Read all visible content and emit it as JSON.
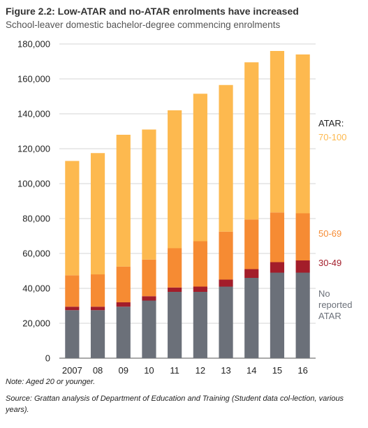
{
  "title": "Figure 2.2: Low-ATAR and no-ATAR enrolments have increased",
  "subtitle": "School-leaver domestic bachelor-degree commencing enrolments",
  "note": "Note: Aged 20 or younger.",
  "source": "Source: Grattan analysis of Department of Education and Training (Student data col-lection, various years).",
  "legend": {
    "header": "ATAR:",
    "items": [
      {
        "key": "atar_70_100",
        "label": "70-100",
        "color": "#FDB94F"
      },
      {
        "key": "atar_50_69",
        "label": "50-69",
        "color": "#F68B33"
      },
      {
        "key": "atar_30_49",
        "label": "30-49",
        "color": "#A31D2A"
      },
      {
        "key": "no_atar",
        "lines": [
          "No",
          "reported",
          "ATAR"
        ],
        "color": "#6B7079"
      }
    ]
  },
  "chart_data": {
    "type": "bar",
    "stacked": true,
    "categories": [
      "2007",
      "08",
      "09",
      "10",
      "11",
      "12",
      "13",
      "14",
      "15",
      "16"
    ],
    "ylim": [
      0,
      180000
    ],
    "yticks": [
      0,
      20000,
      40000,
      60000,
      80000,
      100000,
      120000,
      140000,
      160000,
      180000
    ],
    "ytick_labels": [
      "0",
      "20,000",
      "40,000",
      "60,000",
      "80,000",
      "100,000",
      "120,000",
      "140,000",
      "160,000",
      "180,000"
    ],
    "grid": true,
    "legend_position": "right",
    "series": [
      {
        "key": "no_atar",
        "name": "No reported ATAR",
        "color": "#6B7079",
        "values": [
          27500,
          27500,
          29500,
          33000,
          38000,
          38000,
          41000,
          46000,
          49000,
          49000
        ]
      },
      {
        "key": "atar_30_49",
        "name": "30-49",
        "color": "#A31D2A",
        "values": [
          2000,
          2000,
          2500,
          2500,
          2500,
          3000,
          4000,
          5000,
          6000,
          7000
        ]
      },
      {
        "key": "atar_50_69",
        "name": "50-69",
        "color": "#F68B33",
        "values": [
          18000,
          18500,
          20500,
          21000,
          22500,
          26000,
          27500,
          28500,
          28500,
          27000
        ]
      },
      {
        "key": "atar_70_100",
        "name": "70-100",
        "color": "#FDB94F",
        "values": [
          65500,
          69500,
          75500,
          74500,
          79000,
          84500,
          84000,
          90000,
          92500,
          91000
        ]
      }
    ]
  }
}
